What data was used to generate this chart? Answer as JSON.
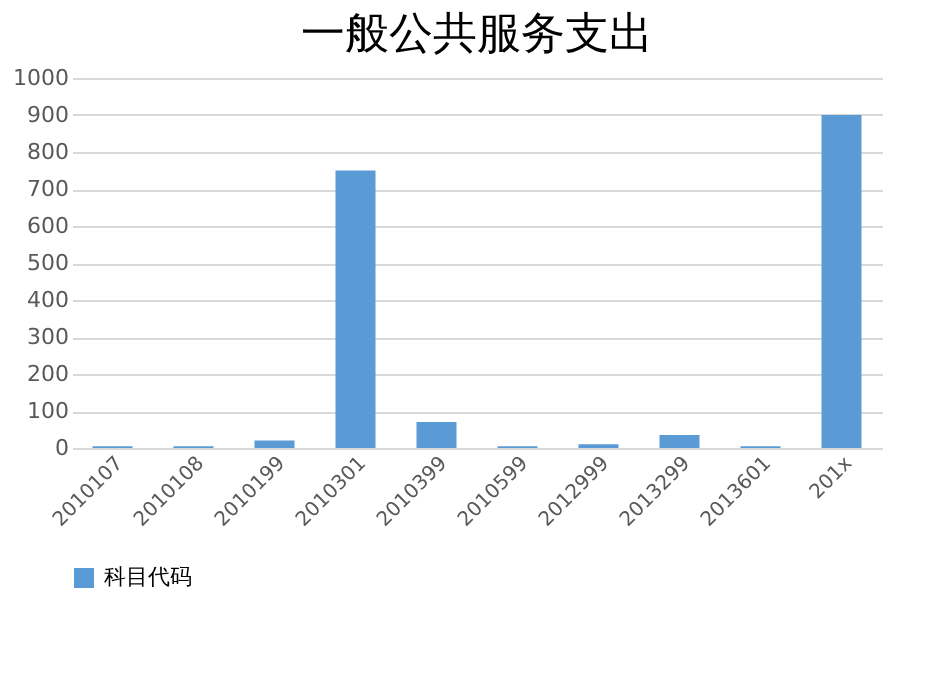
{
  "chart_data": {
    "type": "bar",
    "title": "一般公共服务支出",
    "categories": [
      "2010107",
      "2010108",
      "2010199",
      "2010301",
      "2010399",
      "2010599",
      "2012999",
      "2013299",
      "2013601",
      "201x"
    ],
    "series": [
      {
        "name": "科目代码",
        "color": "#5b9bd5",
        "values": [
          5,
          5,
          20,
          750,
          70,
          5,
          10,
          35,
          5,
          900
        ]
      }
    ],
    "ylim": [
      0,
      1000
    ],
    "yticks": [
      0,
      100,
      200,
      300,
      400,
      500,
      600,
      700,
      800,
      900,
      1000
    ],
    "grid": "y",
    "legend": "bottom"
  }
}
